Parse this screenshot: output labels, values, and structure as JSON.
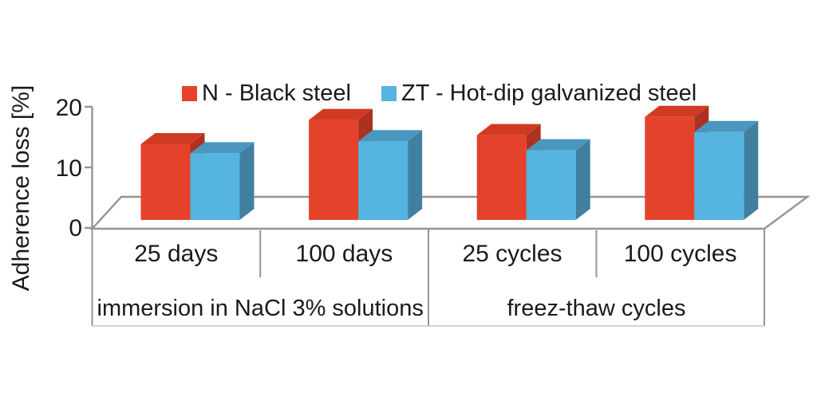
{
  "chart_data": {
    "type": "bar",
    "style": "3d-clustered-column",
    "title": "",
    "ylabel": "Adherence loss [%]",
    "xlabel": "",
    "ylim": [
      0,
      20
    ],
    "yticks": [
      0,
      10,
      20
    ],
    "grid": false,
    "legend_position": "top-center",
    "categories": [
      "25 days",
      "100 days",
      "25 cycles",
      "100 cycles"
    ],
    "category_groups": [
      {
        "label": "immersion in NaCl 3% solutions",
        "categories": [
          "25 days",
          "100 days"
        ]
      },
      {
        "label": "freez-thaw cycles",
        "categories": [
          "25 cycles",
          "100 cycles"
        ]
      }
    ],
    "series": [
      {
        "name": "N - Black steel",
        "color": "#E5422B",
        "color_top": "#D13A22",
        "color_side": "#AC3120",
        "values": [
          12.5,
          16.5,
          14,
          17
        ]
      },
      {
        "name": "ZT - Hot-dip galvanized steel",
        "color": "#55B4E0",
        "color_top": "#4A97BF",
        "color_side": "#417FA0",
        "values": [
          11,
          13,
          11.5,
          14.5
        ]
      }
    ]
  },
  "frame": {
    "line_color": "#9a938e",
    "background": "#ffffff"
  }
}
